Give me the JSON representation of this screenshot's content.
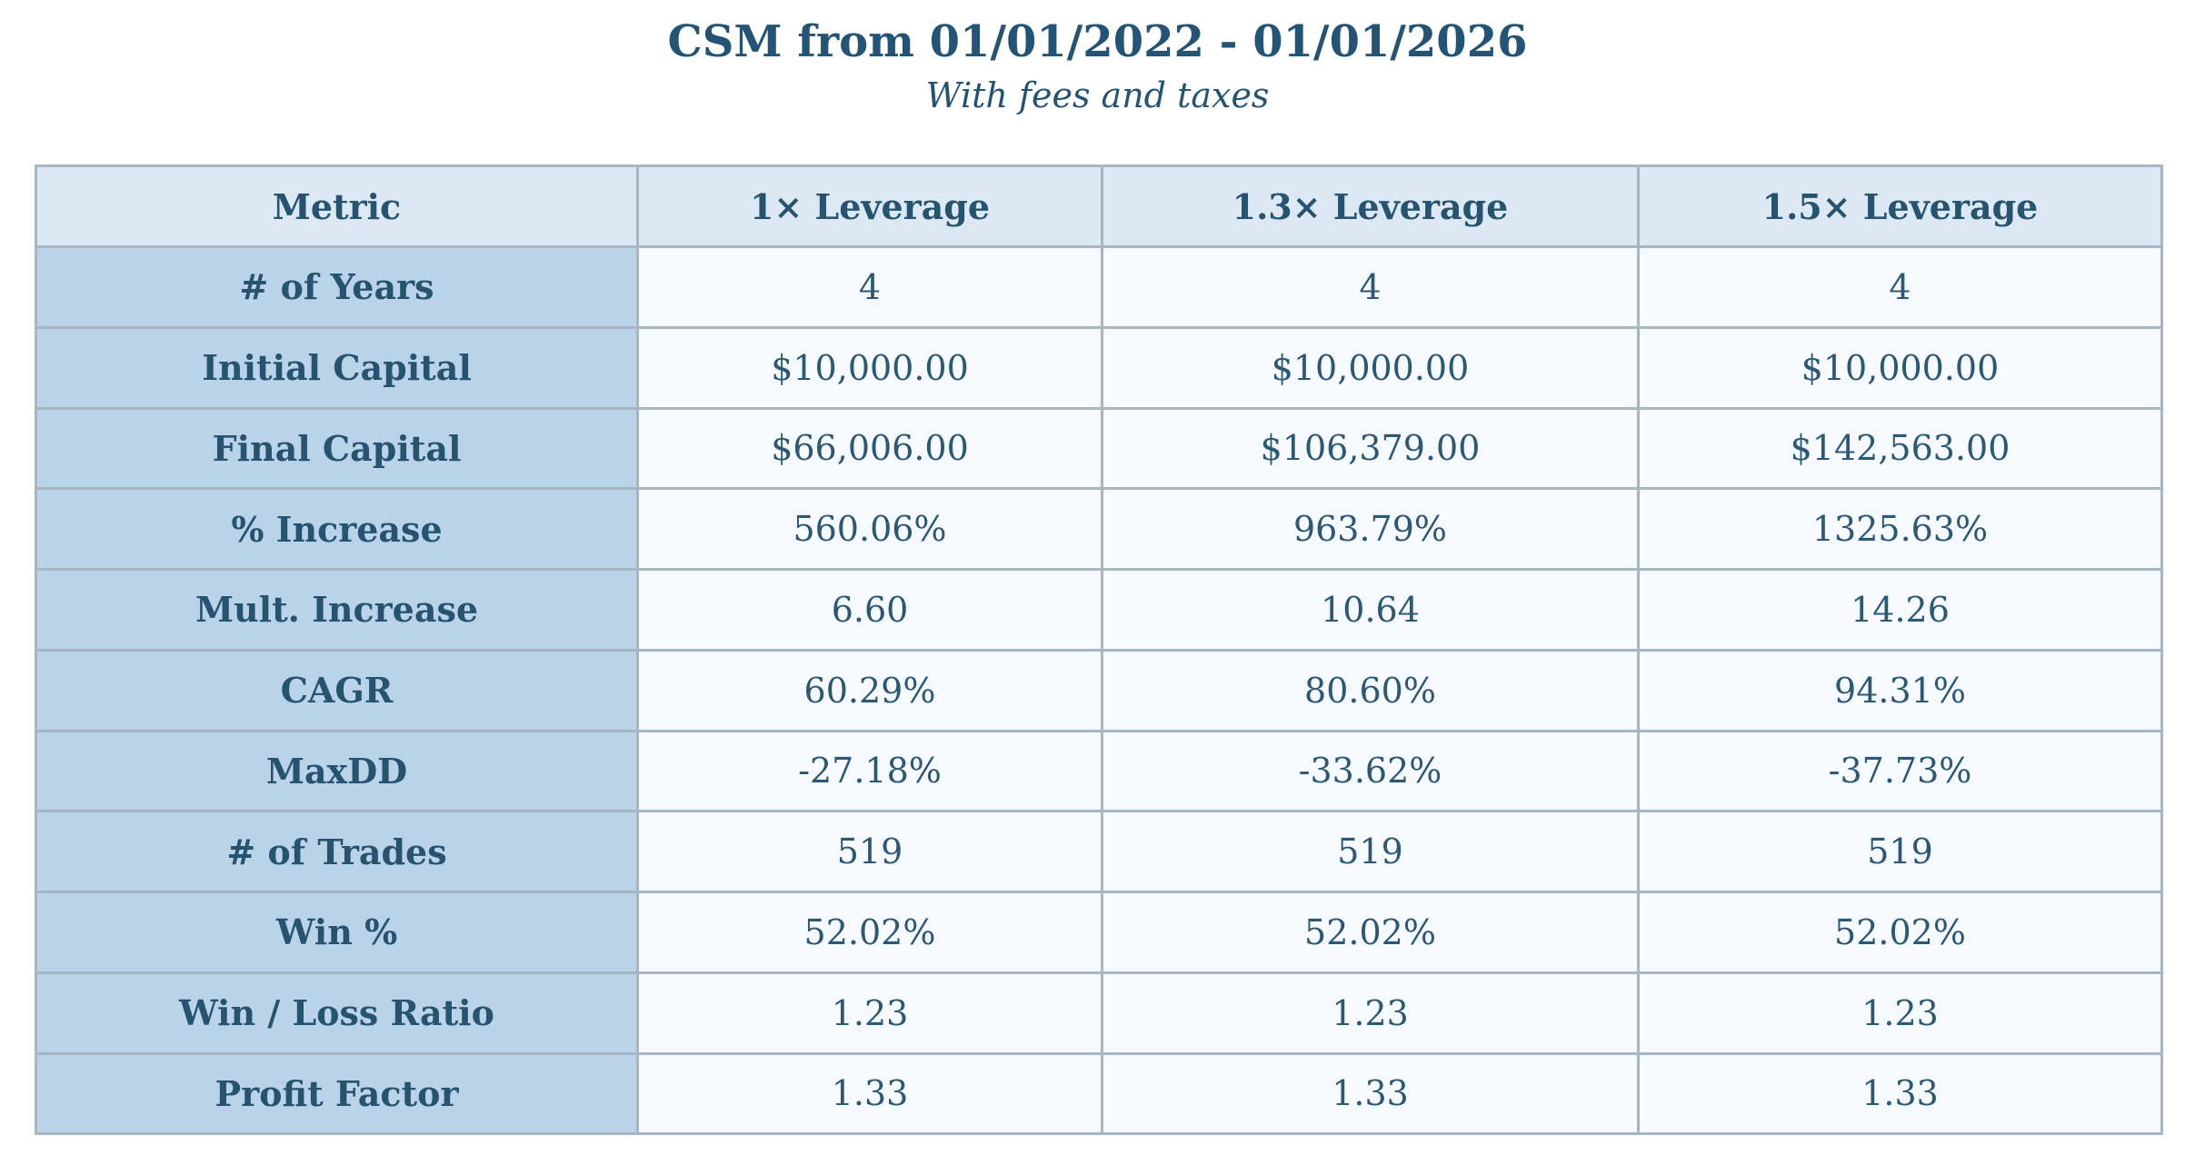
{
  "title": "CSM from 01/01/2022 - 01/01/2026",
  "subtitle": "With fees and taxes",
  "chart_data": {
    "type": "table",
    "columns": [
      "Metric",
      "1× Leverage",
      "1.3× Leverage",
      "1.5× Leverage"
    ],
    "rows": [
      {
        "metric": "# of Years",
        "values": [
          "4",
          "4",
          "4"
        ]
      },
      {
        "metric": "Initial Capital",
        "values": [
          "$10,000.00",
          "$10,000.00",
          "$10,000.00"
        ]
      },
      {
        "metric": "Final Capital",
        "values": [
          "$66,006.00",
          "$106,379.00",
          "$142,563.00"
        ]
      },
      {
        "metric": "% Increase",
        "values": [
          "560.06%",
          "963.79%",
          "1325.63%"
        ]
      },
      {
        "metric": "Mult. Increase",
        "values": [
          "6.60",
          "10.64",
          "14.26"
        ]
      },
      {
        "metric": "CAGR",
        "values": [
          "60.29%",
          "80.60%",
          "94.31%"
        ]
      },
      {
        "metric": "MaxDD",
        "values": [
          "-27.18%",
          "-33.62%",
          "-37.73%"
        ]
      },
      {
        "metric": "# of Trades",
        "values": [
          "519",
          "519",
          "519"
        ]
      },
      {
        "metric": "Win %",
        "values": [
          "52.02%",
          "52.02%",
          "52.02%"
        ]
      },
      {
        "metric": "Win / Loss Ratio",
        "values": [
          "1.23",
          "1.23",
          "1.23"
        ]
      },
      {
        "metric": "Profit Factor",
        "values": [
          "1.33",
          "1.33",
          "1.33"
        ]
      }
    ]
  },
  "colors": {
    "title_color": "#235476",
    "text_color": "#2b5875",
    "label_color": "#265470",
    "header_bg": "#dce9f4",
    "metric_bg": "#bbd3e9",
    "value_bg": "#f6f9fd",
    "border_color": "#a6b6c3",
    "page_bg": "#ffffff"
  }
}
